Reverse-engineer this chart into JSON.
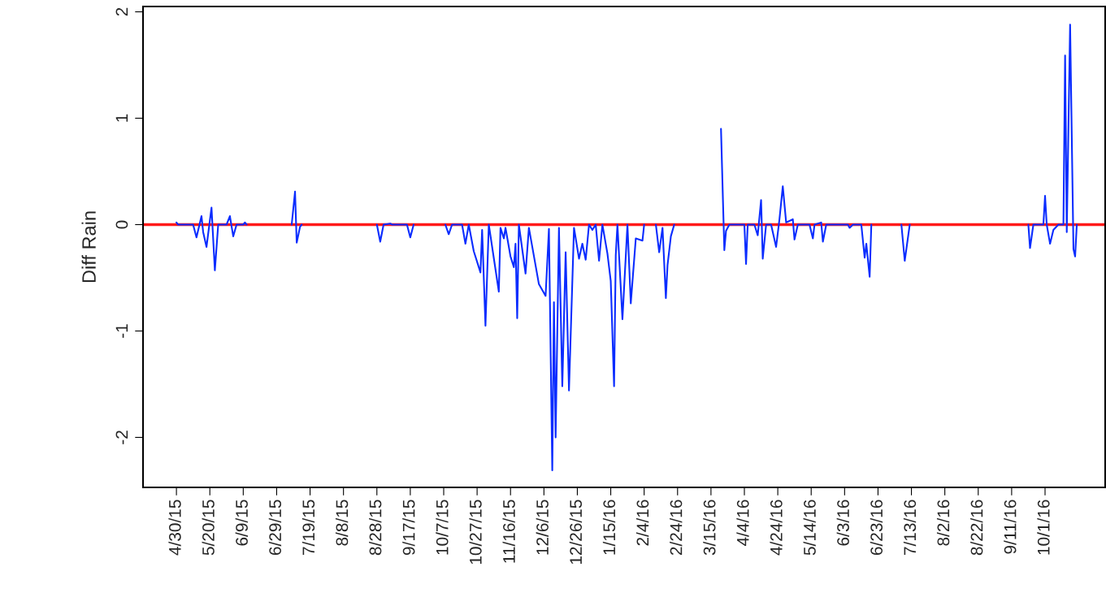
{
  "chart_data": {
    "type": "line",
    "ylabel": "Diff Rain",
    "x": [
      "2015-04-30",
      "2015-05-01",
      "2015-05-10",
      "2015-05-12",
      "2015-05-15",
      "2015-05-16",
      "2015-05-18",
      "2015-05-21",
      "2015-05-23",
      "2015-05-25",
      "2015-05-30",
      "2015-06-01",
      "2015-06-03",
      "2015-06-05",
      "2015-06-09",
      "2015-06-10",
      "2015-06-11",
      "2015-06-25",
      "2015-07-08",
      "2015-07-10",
      "2015-07-11",
      "2015-07-13",
      "2015-07-14",
      "2015-08-10",
      "2015-08-28",
      "2015-08-30",
      "2015-09-01",
      "2015-09-05",
      "2015-09-06",
      "2015-09-15",
      "2015-09-17",
      "2015-09-19",
      "2015-09-30",
      "2015-10-08",
      "2015-10-10",
      "2015-10-12",
      "2015-10-18",
      "2015-10-20",
      "2015-10-22",
      "2015-10-25",
      "2015-10-29",
      "2015-10-30",
      "2015-11-01",
      "2015-11-03",
      "2015-11-09",
      "2015-11-10",
      "2015-11-12",
      "2015-11-13",
      "2015-11-16",
      "2015-11-18",
      "2015-11-19",
      "2015-11-20",
      "2015-11-21",
      "2015-11-25",
      "2015-11-27",
      "2015-12-03",
      "2015-12-07",
      "2015-12-09",
      "2015-12-11",
      "2015-12-12",
      "2015-12-13",
      "2015-12-15",
      "2015-12-17",
      "2015-12-19",
      "2015-12-21",
      "2015-12-24",
      "2015-12-27",
      "2015-12-29",
      "2015-12-31",
      "2016-01-02",
      "2016-01-04",
      "2016-01-06",
      "2016-01-08",
      "2016-01-10",
      "2016-01-13",
      "2016-01-15",
      "2016-01-17",
      "2016-01-18",
      "2016-01-19",
      "2016-01-22",
      "2016-01-25",
      "2016-01-27",
      "2016-01-30",
      "2016-02-03",
      "2016-02-04",
      "2016-02-08",
      "2016-02-11",
      "2016-02-13",
      "2016-02-15",
      "2016-02-17",
      "2016-02-18",
      "2016-02-20",
      "2016-02-22",
      "2016-03-10",
      "2016-03-21",
      "2016-03-23",
      "2016-03-24",
      "2016-03-26",
      "2016-04-04",
      "2016-04-05",
      "2016-04-06",
      "2016-04-10",
      "2016-04-12",
      "2016-04-14",
      "2016-04-15",
      "2016-04-17",
      "2016-04-20",
      "2016-04-23",
      "2016-04-25",
      "2016-04-27",
      "2016-04-29",
      "2016-05-03",
      "2016-05-04",
      "2016-05-06",
      "2016-05-13",
      "2016-05-15",
      "2016-05-16",
      "2016-05-20",
      "2016-05-21",
      "2016-05-23",
      "2016-06-05",
      "2016-06-06",
      "2016-06-08",
      "2016-06-13",
      "2016-06-15",
      "2016-06-16",
      "2016-06-18",
      "2016-06-19",
      "2016-06-28",
      "2016-07-07",
      "2016-07-09",
      "2016-07-12",
      "2016-08-15",
      "2016-09-21",
      "2016-09-22",
      "2016-09-24",
      "2016-09-30",
      "2016-10-01",
      "2016-10-02",
      "2016-10-04",
      "2016-10-06",
      "2016-10-09",
      "2016-10-12",
      "2016-10-13",
      "2016-10-14",
      "2016-10-16",
      "2016-10-18",
      "2016-10-19",
      "2016-10-20"
    ],
    "series": [
      {
        "color": "#0a2cff",
        "values": [
          0.02,
          0,
          0,
          -0.12,
          0.08,
          -0.07,
          -0.21,
          0.16,
          -0.43,
          0,
          0,
          0.08,
          -0.11,
          0,
          0,
          0.02,
          0,
          null,
          0,
          0.31,
          -0.17,
          -0.02,
          0,
          null,
          0,
          -0.16,
          0,
          0.01,
          0,
          0,
          -0.12,
          0,
          null,
          0,
          -0.09,
          0,
          0,
          -0.18,
          0,
          -0.25,
          -0.45,
          -0.05,
          -0.95,
          0,
          -0.63,
          -0.03,
          -0.13,
          -0.03,
          -0.3,
          -0.4,
          -0.18,
          -0.88,
          0,
          -0.46,
          -0.03,
          -0.56,
          -0.67,
          -0.04,
          -2.31,
          -0.73,
          -2.0,
          -0.03,
          -1.52,
          -0.26,
          -1.56,
          -0.03,
          -0.32,
          -0.18,
          -0.33,
          0,
          -0.05,
          0,
          -0.34,
          0,
          -0.27,
          -0.53,
          -1.52,
          -0.29,
          0,
          -0.89,
          0,
          -0.74,
          -0.13,
          -0.15,
          0,
          null,
          0,
          -0.26,
          -0.03,
          -0.69,
          -0.38,
          -0.11,
          0,
          null,
          0.9,
          -0.24,
          -0.06,
          0,
          0,
          -0.37,
          0,
          0,
          -0.1,
          0.23,
          -0.32,
          0,
          0,
          -0.21,
          0.05,
          0.36,
          0.02,
          0.05,
          -0.14,
          0,
          0,
          -0.13,
          0,
          0.02,
          -0.16,
          0,
          0,
          -0.03,
          0,
          0,
          -0.31,
          -0.18,
          -0.49,
          0,
          null,
          0,
          -0.34,
          0,
          null,
          0,
          -0.22,
          0,
          0,
          0.27,
          0,
          -0.18,
          -0.05,
          0,
          0,
          1.59,
          -0.07,
          1.88,
          -0.23,
          -0.3,
          0
        ]
      }
    ],
    "xlim": [
      "2015-04-10",
      "2016-11-06"
    ],
    "ylim": [
      -2.47,
      2.05
    ],
    "yticks": [
      -2,
      -1,
      0,
      1,
      2
    ],
    "xticks": [
      {
        "value": "2015-04-30",
        "label": "4/30/15"
      },
      {
        "value": "2015-05-20",
        "label": "5/20/15"
      },
      {
        "value": "2015-06-09",
        "label": "6/9/15"
      },
      {
        "value": "2015-06-29",
        "label": "6/29/15"
      },
      {
        "value": "2015-07-19",
        "label": "7/19/15"
      },
      {
        "value": "2015-08-08",
        "label": "8/8/15"
      },
      {
        "value": "2015-08-28",
        "label": "8/28/15"
      },
      {
        "value": "2015-09-17",
        "label": "9/17/15"
      },
      {
        "value": "2015-10-07",
        "label": "10/7/15"
      },
      {
        "value": "2015-10-27",
        "label": "10/27/15"
      },
      {
        "value": "2015-11-16",
        "label": "11/16/15"
      },
      {
        "value": "2015-12-06",
        "label": "12/6/15"
      },
      {
        "value": "2015-12-26",
        "label": "12/26/15"
      },
      {
        "value": "2016-01-15",
        "label": "1/15/16"
      },
      {
        "value": "2016-02-04",
        "label": "2/4/16"
      },
      {
        "value": "2016-02-24",
        "label": "2/24/16"
      },
      {
        "value": "2016-03-15",
        "label": "3/15/16"
      },
      {
        "value": "2016-04-04",
        "label": "4/4/16"
      },
      {
        "value": "2016-04-24",
        "label": "4/24/16"
      },
      {
        "value": "2016-05-14",
        "label": "5/14/16"
      },
      {
        "value": "2016-06-03",
        "label": "6/3/16"
      },
      {
        "value": "2016-06-23",
        "label": "6/23/16"
      },
      {
        "value": "2016-07-13",
        "label": "7/13/16"
      },
      {
        "value": "2016-08-02",
        "label": "8/2/16"
      },
      {
        "value": "2016-08-22",
        "label": "8/22/16"
      },
      {
        "value": "2016-09-11",
        "label": "9/11/16"
      },
      {
        "value": "2016-10-01",
        "label": "10/1/16"
      }
    ],
    "ref_lines": [
      {
        "axis": "y",
        "value": 0,
        "color": "#ff1a1a",
        "line_style": "solid"
      }
    ],
    "grid": false,
    "line_style": "solid",
    "marker": "none"
  }
}
